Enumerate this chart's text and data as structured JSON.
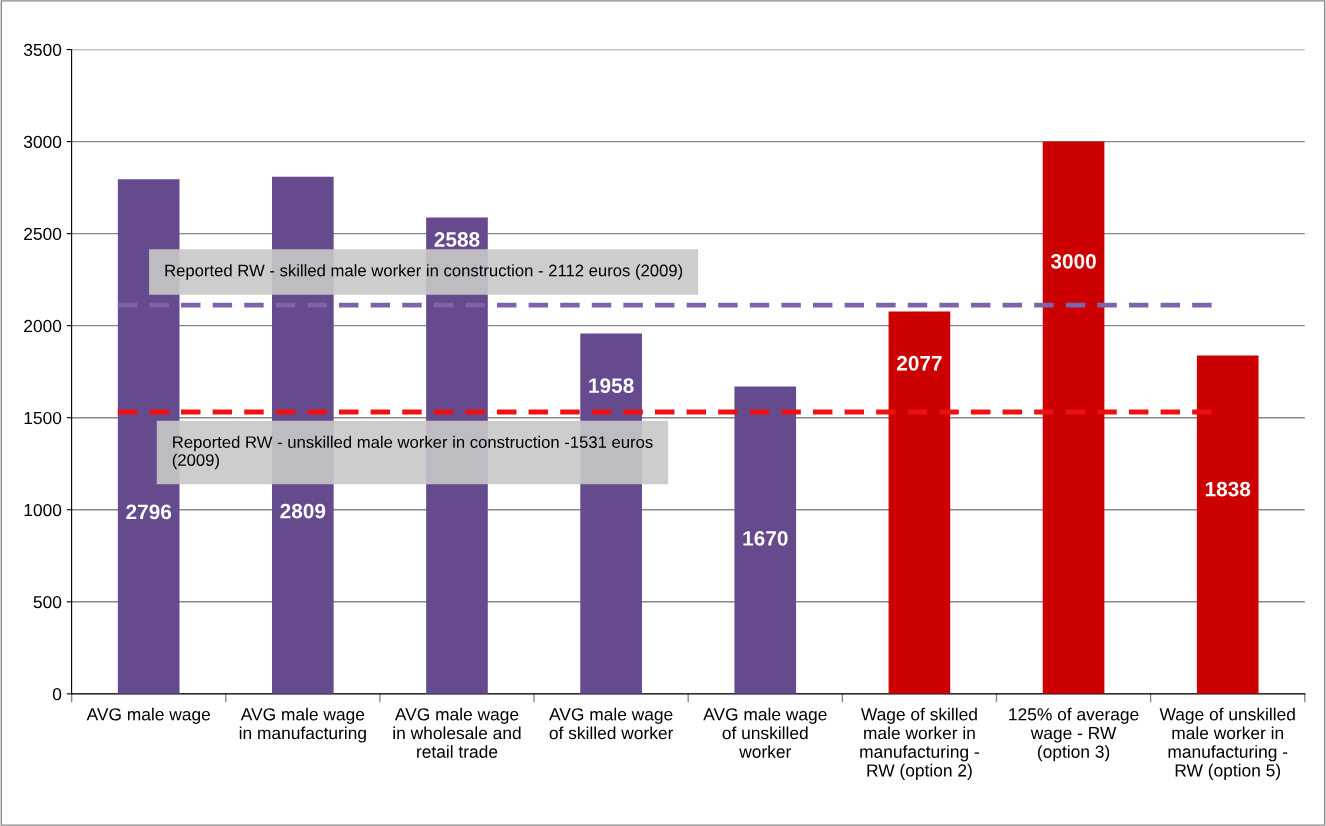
{
  "chart_data": {
    "type": "bar",
    "categories": [
      "AVG male wage",
      "AVG male wage\nin manufacturing",
      "AVG male wage\nin wholesale and\nretail trade",
      "AVG male wage\nof skilled worker",
      "AVG male wage\nof unskilled\nworker",
      "Wage of skilled\nmale worker in\nmanufacturing -\nRW (option 2)",
      "125% of average\nwage - RW\n(option 3)",
      "Wage of unskilled\nmale worker in\nmanufacturing -\nRW (option 5)"
    ],
    "values": [
      2796,
      2809,
      2588,
      1958,
      1670,
      2077,
      3000,
      1838
    ],
    "colors": [
      "#654a8e",
      "#654a8e",
      "#654a8e",
      "#654a8e",
      "#654a8e",
      "#cc0000",
      "#cc0000",
      "#cc0000"
    ],
    "ylim": [
      0,
      3500
    ],
    "yticks": [
      0,
      500,
      1000,
      1500,
      2000,
      2500,
      3000,
      3500
    ],
    "grid": "y",
    "data_labels": true,
    "ref_lines": [
      {
        "axis": "y",
        "value": 2112,
        "label": "Reported RW - skilled male worker in construction - 2112 euros (2009)",
        "color": "#7f63aa",
        "line_style": "dashed"
      },
      {
        "axis": "y",
        "value": 1531,
        "label": "Reported RW - unskilled male worker in construction -1531 euros\n(2009)",
        "color": "#ee1111",
        "line_style": "dashed"
      }
    ]
  }
}
